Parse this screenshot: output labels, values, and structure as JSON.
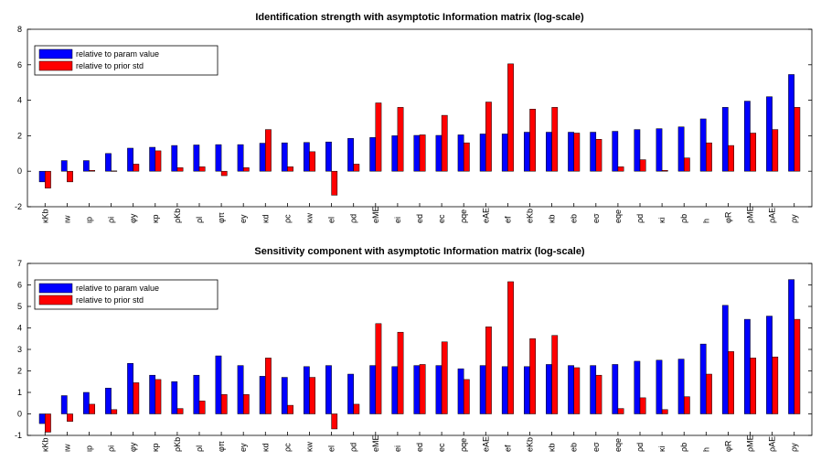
{
  "chart_data": [
    {
      "type": "bar",
      "title": "Identification strength with asymptotic Information matrix (log-scale)",
      "xlabel": "",
      "ylabel": "",
      "ylim": [
        -2,
        8
      ],
      "yticks": [
        -2,
        0,
        2,
        4,
        6,
        8
      ],
      "legend_position": "top-left",
      "grid": false,
      "categories": [
        "κKb",
        "ιw",
        "ιp",
        "ρi",
        "φy",
        "κp",
        "ρKb",
        "ρl",
        "φπ",
        "ey",
        "κd",
        "ρc",
        "κw",
        "el",
        "ρd",
        "eME",
        "ei",
        "ed",
        "ec",
        "ρqe",
        "eAE",
        "ef",
        "eKb",
        "κb",
        "eb",
        "eσ",
        "eqe",
        "ρd",
        "κi",
        "ρb",
        "h",
        "φR",
        "ρME",
        "ρAE",
        "ρy"
      ],
      "series": [
        {
          "name": "relative to param value",
          "color": "#0000ff",
          "values": [
            -0.6,
            0.6,
            0.6,
            1.0,
            1.3,
            1.35,
            1.45,
            1.48,
            1.5,
            1.5,
            1.58,
            1.6,
            1.62,
            1.65,
            1.85,
            1.9,
            2.0,
            2.02,
            2.02,
            2.05,
            2.1,
            2.1,
            2.2,
            2.2,
            2.2,
            2.2,
            2.25,
            2.35,
            2.4,
            2.5,
            2.95,
            3.6,
            3.95,
            4.2,
            5.45
          ]
        },
        {
          "name": "relative to prior std",
          "color": "#ff0000",
          "values": [
            -0.95,
            -0.6,
            0.05,
            0.02,
            0.4,
            1.15,
            0.2,
            0.25,
            -0.25,
            0.2,
            2.35,
            0.25,
            1.1,
            -1.35,
            0.4,
            3.85,
            3.6,
            2.05,
            3.15,
            1.6,
            3.9,
            6.05,
            3.5,
            3.6,
            2.15,
            1.8,
            0.25,
            0.65,
            0.05,
            0.75,
            1.6,
            1.45,
            2.15,
            2.35,
            3.6
          ]
        }
      ]
    },
    {
      "type": "bar",
      "title": "Sensitivity component with asymptotic Information matrix (log-scale)",
      "xlabel": "",
      "ylabel": "",
      "ylim": [
        -1,
        7
      ],
      "yticks": [
        -1,
        0,
        1,
        2,
        3,
        4,
        5,
        6,
        7
      ],
      "legend_position": "top-left",
      "grid": false,
      "categories": [
        "κKb",
        "ιw",
        "ιp",
        "ρi",
        "φy",
        "κp",
        "ρKb",
        "ρl",
        "φπ",
        "ey",
        "κd",
        "ρc",
        "κw",
        "el",
        "ρd",
        "eME",
        "ei",
        "ed",
        "ec",
        "ρqe",
        "eAE",
        "ef",
        "eKb",
        "κb",
        "eb",
        "eσ",
        "eqe",
        "ρd",
        "κi",
        "ρb",
        "h",
        "φR",
        "ρME",
        "ρAE",
        "ρy"
      ],
      "series": [
        {
          "name": "relative to param value",
          "color": "#0000ff",
          "values": [
            -0.45,
            0.85,
            1.0,
            1.2,
            2.35,
            1.8,
            1.5,
            1.8,
            2.7,
            2.25,
            1.75,
            1.7,
            2.2,
            2.25,
            1.85,
            2.25,
            2.2,
            2.25,
            2.25,
            2.1,
            2.25,
            2.2,
            2.2,
            2.3,
            2.25,
            2.25,
            2.3,
            2.45,
            2.5,
            2.55,
            3.25,
            5.05,
            4.4,
            4.55,
            6.25
          ]
        },
        {
          "name": "relative to prior std",
          "color": "#ff0000",
          "values": [
            -0.85,
            -0.35,
            0.45,
            0.2,
            1.45,
            1.6,
            0.25,
            0.6,
            0.9,
            0.9,
            2.6,
            0.4,
            1.7,
            -0.7,
            0.45,
            4.2,
            3.8,
            2.3,
            3.35,
            1.6,
            4.05,
            6.15,
            3.5,
            3.65,
            2.15,
            1.8,
            0.25,
            0.75,
            0.2,
            0.8,
            1.85,
            2.9,
            2.6,
            2.65,
            4.4
          ]
        }
      ]
    }
  ]
}
